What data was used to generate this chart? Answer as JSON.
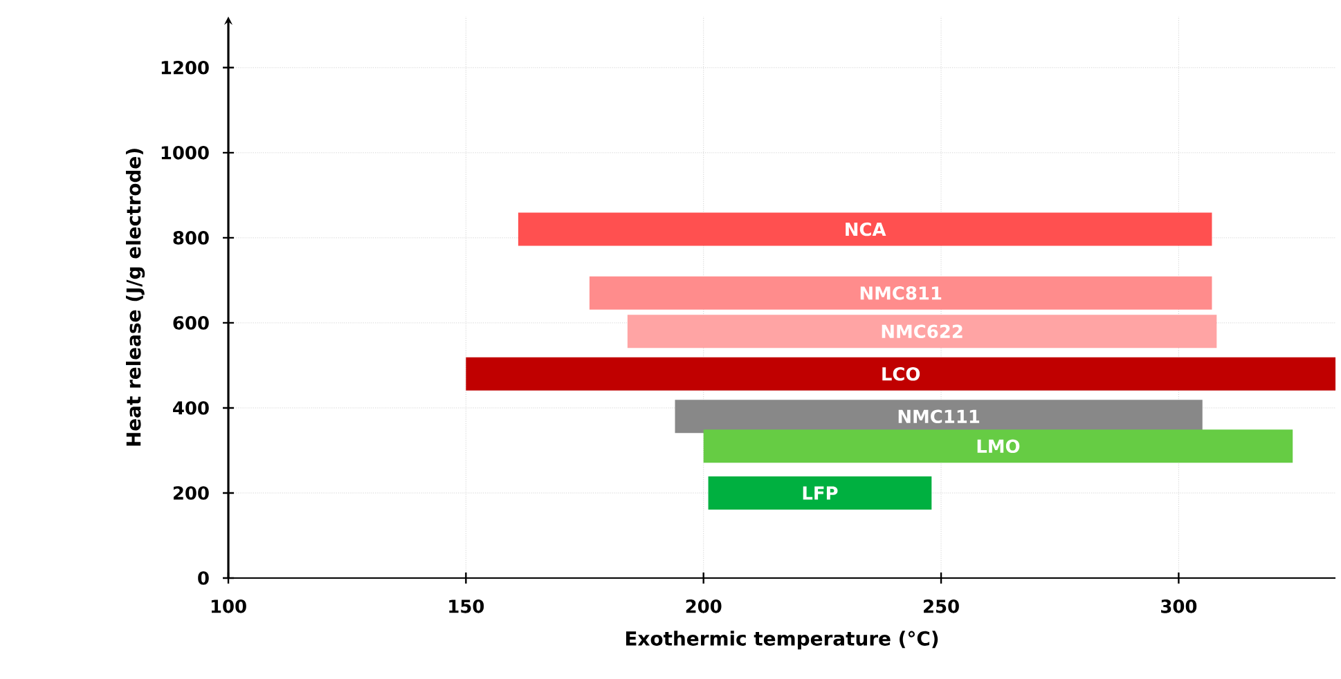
{
  "chart_data": {
    "type": "line",
    "xlabel": "Exothermic temperature (°C)",
    "ylabel": "Heat release (J/g electrode)",
    "xlim": [
      100,
      333
    ],
    "ylim": [
      0,
      1320
    ],
    "xticks": [
      100,
      150,
      200,
      250,
      300
    ],
    "yticks": [
      0,
      200,
      400,
      600,
      800,
      1000,
      1200
    ],
    "grid": true,
    "series": [
      {
        "name": "NCA",
        "color": "#ff5050",
        "x": [
          161,
          307
        ],
        "values": [
          820,
          820
        ]
      },
      {
        "name": "NMC811",
        "color": "#ff8c8c",
        "x": [
          176,
          307
        ],
        "values": [
          670,
          670
        ]
      },
      {
        "name": "NMC622",
        "color": "#ffa4a4",
        "x": [
          184,
          308
        ],
        "values": [
          580,
          580
        ]
      },
      {
        "name": "LCO",
        "color": "#c00000",
        "x": [
          150,
          333
        ],
        "values": [
          480,
          480
        ]
      },
      {
        "name": "NMC111",
        "color": "#888888",
        "x": [
          194,
          305
        ],
        "values": [
          380,
          380
        ]
      },
      {
        "name": "LMO",
        "color": "#66cc44",
        "x": [
          200,
          324
        ],
        "values": [
          310,
          310
        ]
      },
      {
        "name": "LFP",
        "color": "#00b040",
        "x": [
          201,
          248
        ],
        "values": [
          200,
          200
        ]
      }
    ]
  }
}
